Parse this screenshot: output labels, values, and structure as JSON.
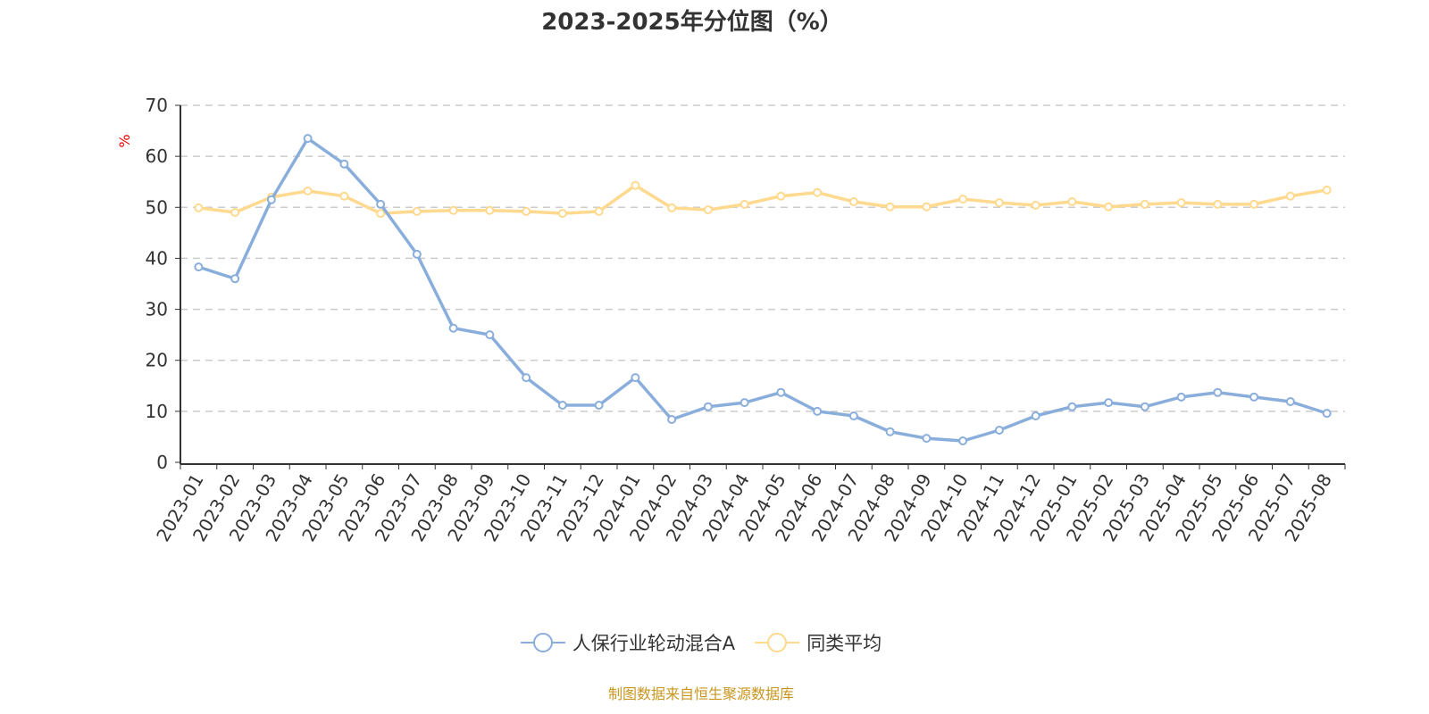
{
  "chart_data": {
    "type": "line",
    "title": "2023-2025年分位图（%）",
    "ylabel": "%",
    "xlabel": "",
    "ylim": [
      0,
      70
    ],
    "yticks": [
      0,
      10,
      20,
      30,
      40,
      50,
      60,
      70
    ],
    "grid": true,
    "legend_placement": "bottom",
    "categories": [
      "2023-01",
      "2023-02",
      "2023-03",
      "2023-04",
      "2023-05",
      "2023-06",
      "2023-07",
      "2023-08",
      "2023-09",
      "2023-10",
      "2023-11",
      "2023-12",
      "2024-01",
      "2024-02",
      "2024-03",
      "2024-04",
      "2024-05",
      "2024-06",
      "2024-07",
      "2024-08",
      "2024-09",
      "2024-10",
      "2024-11",
      "2024-12",
      "2025-01",
      "2025-02",
      "2025-03",
      "2025-04",
      "2025-05",
      "2025-06",
      "2025-07",
      "2025-08"
    ],
    "series": [
      {
        "name": "人保行业轮动混合A",
        "color": "#8aaedc",
        "values": [
          38.3,
          36.0,
          51.5,
          63.5,
          58.5,
          50.6,
          40.8,
          26.3,
          25.0,
          16.6,
          11.2,
          11.2,
          16.6,
          8.4,
          10.9,
          11.7,
          13.7,
          10.0,
          9.1,
          6.0,
          4.7,
          4.2,
          6.3,
          9.1,
          10.9,
          11.7,
          10.9,
          12.8,
          13.7,
          12.8,
          11.9,
          9.6
        ]
      },
      {
        "name": "同类平均",
        "color": "#ffd98e",
        "values": [
          49.9,
          49.0,
          52.0,
          53.2,
          52.2,
          48.8,
          49.2,
          49.4,
          49.4,
          49.2,
          48.8,
          49.2,
          54.3,
          49.9,
          49.5,
          50.6,
          52.2,
          52.9,
          51.1,
          50.1,
          50.1,
          51.6,
          50.9,
          50.4,
          51.1,
          50.1,
          50.6,
          50.9,
          50.6,
          50.6,
          52.2,
          53.4
        ]
      }
    ]
  },
  "source": "制图数据来自恒生聚源数据库"
}
